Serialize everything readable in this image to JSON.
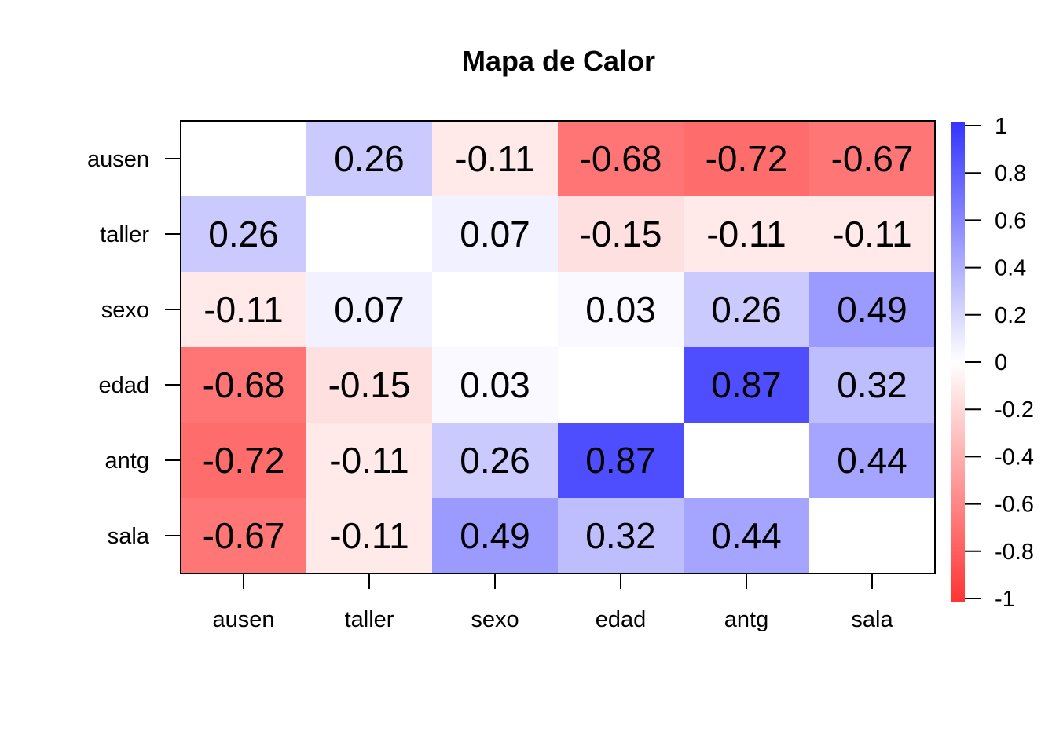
{
  "chart_data": {
    "type": "heatmap",
    "title": "Mapa de Calor",
    "rows": [
      "ausen",
      "taller",
      "sexo",
      "edad",
      "antg",
      "sala"
    ],
    "columns": [
      "ausen",
      "taller",
      "sexo",
      "edad",
      "antg",
      "sala"
    ],
    "values": [
      [
        null,
        0.26,
        -0.11,
        -0.68,
        -0.72,
        -0.67
      ],
      [
        0.26,
        null,
        0.07,
        -0.15,
        -0.11,
        -0.11
      ],
      [
        -0.11,
        0.07,
        null,
        0.03,
        0.26,
        0.49
      ],
      [
        -0.68,
        -0.15,
        0.03,
        null,
        0.87,
        0.32
      ],
      [
        -0.72,
        -0.11,
        0.26,
        0.87,
        null,
        0.44
      ],
      [
        -0.67,
        -0.11,
        0.49,
        0.32,
        0.44,
        null
      ]
    ],
    "labels": [
      [
        "",
        "0.26",
        "-0.11",
        "-0.68",
        "-0.72",
        "-0.67"
      ],
      [
        "0.26",
        "",
        "0.07",
        "-0.15",
        "-0.11",
        "-0.11"
      ],
      [
        "-0.11",
        "0.07",
        "",
        "0.03",
        "0.26",
        "0.49"
      ],
      [
        "-0.68",
        "-0.15",
        "0.03",
        "",
        "0.87",
        "0.32"
      ],
      [
        "-0.72",
        "-0.11",
        "0.26",
        "0.87",
        "",
        "0.44"
      ],
      [
        "-0.67",
        "-0.11",
        "0.49",
        "0.32",
        "0.44",
        ""
      ]
    ],
    "colorbar": {
      "range": [
        -1,
        1
      ],
      "ticks": [
        "1",
        "0.8",
        "0.6",
        "0.4",
        "0.2",
        "0",
        "-0.2",
        "-0.4",
        "-0.6",
        "-0.8",
        "-1"
      ],
      "low_color": "#ff3333",
      "mid_color": "#ffffff",
      "high_color": "#3333ff"
    }
  }
}
